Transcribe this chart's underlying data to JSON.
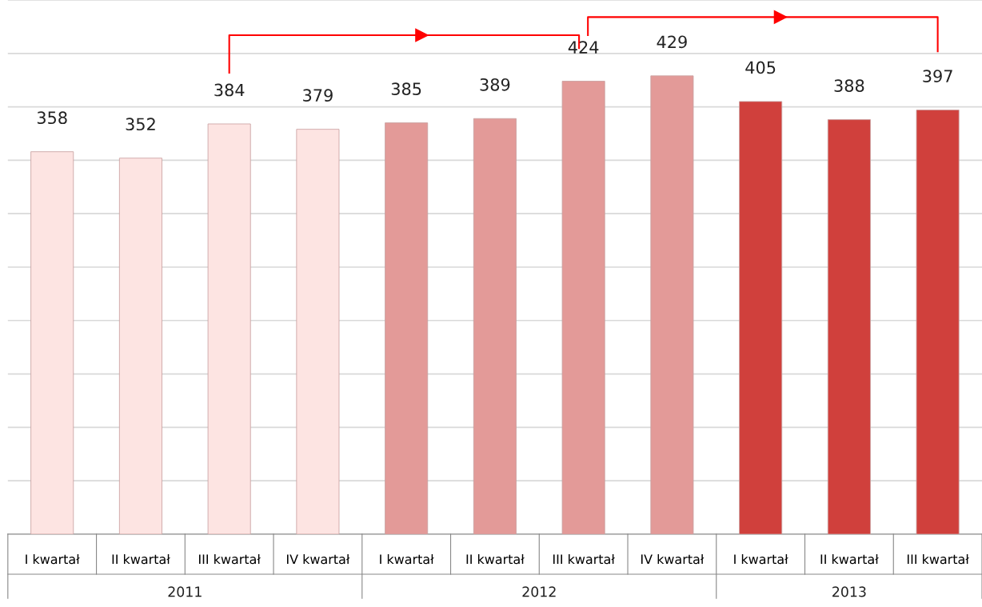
{
  "chart_data": {
    "type": "bar",
    "categories": [
      "I kwartał",
      "II kwartał",
      "III kwartał",
      "IV kwartał",
      "I kwartał",
      "II kwartał",
      "III kwartał",
      "IV kwartał",
      "I kwartał",
      "II kwartał",
      "III kwartał"
    ],
    "values": [
      358,
      352,
      384,
      379,
      385,
      389,
      424,
      429,
      405,
      388,
      397
    ],
    "colors": [
      "#fde4e2",
      "#fde4e2",
      "#fde4e2",
      "#fde4e2",
      "#e39a98",
      "#e39a98",
      "#e39a98",
      "#e39a98",
      "#d0403c",
      "#d0403c",
      "#d0403c"
    ],
    "ylim": [
      0,
      500
    ],
    "yticks": [
      {
        "value": 50,
        "label": null
      },
      {
        "value": 100,
        "label": null
      },
      {
        "value": 150,
        "label": null
      },
      {
        "value": 200,
        "label": null
      },
      {
        "value": 250,
        "label": null
      },
      {
        "value": 300,
        "label": null
      },
      {
        "value": 350,
        "label": null
      },
      {
        "value": 400,
        "label": null
      },
      {
        "value": 450,
        "label": null
      },
      {
        "value": 500,
        "label": null
      }
    ],
    "tick_labels": "x",
    "grid": "y",
    "data_labels": true,
    "annotations": [
      "2011",
      "2012",
      "2013"
    ]
  }
}
